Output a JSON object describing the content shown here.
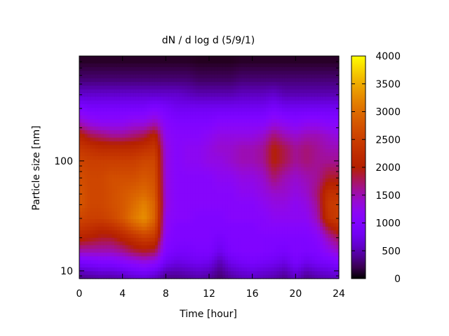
{
  "chart_data": {
    "type": "heatmap",
    "title": "dN / d log d (5/9/1)",
    "xlabel": "Time [hour]",
    "ylabel": "Particle size [nm]",
    "x_ticks": [
      0,
      4,
      8,
      12,
      16,
      20,
      24
    ],
    "x_tick_labels": [
      "0",
      "4",
      "8",
      "12",
      "16",
      "20",
      "24"
    ],
    "xlim": [
      0,
      24
    ],
    "y_scale": "log",
    "ylim": [
      8.5,
      900
    ],
    "y_ticks": [
      10,
      100
    ],
    "y_tick_labels": [
      "10",
      "100"
    ],
    "colorbar": {
      "range": [
        0,
        4000
      ],
      "ticks": [
        0,
        500,
        1000,
        1500,
        2000,
        2500,
        3000,
        3500,
        4000
      ],
      "tick_labels": [
        "0",
        "500",
        "1000",
        "1500",
        "2000",
        "2500",
        "3000",
        "3500",
        "4000"
      ],
      "palette": "gnuplot black-purple-red-orange-yellow"
    },
    "grid_hours": [
      0,
      1,
      2,
      3,
      4,
      5,
      6,
      7,
      8,
      9,
      10,
      11,
      12,
      13,
      14,
      15,
      16,
      17,
      18,
      19,
      20,
      21,
      22,
      23,
      24
    ],
    "grid_diameters_nm": [
      9,
      12,
      15,
      20,
      25,
      30,
      40,
      50,
      70,
      100,
      130,
      170,
      220,
      300,
      400,
      550,
      800
    ],
    "grid_values": [
      [
        400,
        900,
        1500,
        2100,
        2400,
        2600,
        2800,
        2800,
        2700,
        2600,
        2400,
        2100,
        1500,
        1000,
        600,
        300,
        100
      ],
      [
        450,
        950,
        1500,
        2000,
        2300,
        2500,
        2600,
        2600,
        2600,
        2500,
        2300,
        1800,
        1300,
        900,
        600,
        300,
        100
      ],
      [
        500,
        1000,
        1500,
        1900,
        2200,
        2500,
        2600,
        2600,
        2600,
        2500,
        2200,
        1700,
        1200,
        900,
        600,
        300,
        100
      ],
      [
        500,
        1000,
        1500,
        1900,
        2300,
        2600,
        2700,
        2700,
        2700,
        2500,
        2200,
        1600,
        1200,
        900,
        600,
        300,
        100
      ],
      [
        550,
        1100,
        1600,
        2100,
        2500,
        2800,
        2800,
        2800,
        2700,
        2500,
        2200,
        1600,
        1200,
        900,
        600,
        300,
        100
      ],
      [
        650,
        1200,
        1800,
        2300,
        2800,
        3100,
        3000,
        2900,
        2700,
        2500,
        2200,
        1700,
        1300,
        900,
        600,
        300,
        100
      ],
      [
        700,
        1300,
        1900,
        2500,
        3000,
        3300,
        3200,
        3000,
        2800,
        2600,
        2300,
        1800,
        1300,
        900,
        600,
        300,
        100
      ],
      [
        600,
        1200,
        1800,
        2400,
        2700,
        2900,
        2900,
        2800,
        2700,
        2600,
        2400,
        2100,
        1500,
        1000,
        600,
        300,
        100
      ],
      [
        400,
        800,
        1000,
        1100,
        1200,
        1200,
        1300,
        1300,
        1300,
        1300,
        1300,
        1200,
        1100,
        900,
        600,
        300,
        100
      ],
      [
        400,
        700,
        900,
        1000,
        1000,
        1100,
        1100,
        1100,
        1100,
        1100,
        1100,
        1100,
        1000,
        800,
        600,
        300,
        100
      ],
      [
        450,
        750,
        900,
        1000,
        1000,
        1100,
        1100,
        1100,
        1100,
        1200,
        1200,
        1100,
        1000,
        800,
        550,
        300,
        100
      ],
      [
        500,
        800,
        950,
        1000,
        1000,
        1000,
        1100,
        1100,
        1100,
        1200,
        1200,
        1100,
        1000,
        800,
        500,
        250,
        80
      ],
      [
        450,
        750,
        950,
        1000,
        1000,
        1000,
        1100,
        1100,
        1100,
        1300,
        1300,
        1200,
        1000,
        800,
        500,
        250,
        80
      ],
      [
        300,
        500,
        750,
        900,
        1000,
        1000,
        1100,
        1100,
        1200,
        1300,
        1400,
        1300,
        1100,
        800,
        500,
        250,
        80
      ],
      [
        450,
        750,
        950,
        1000,
        1000,
        1100,
        1100,
        1100,
        1200,
        1400,
        1400,
        1300,
        1100,
        800,
        500,
        250,
        80
      ],
      [
        550,
        850,
        1000,
        1000,
        1000,
        1100,
        1100,
        1200,
        1300,
        1500,
        1500,
        1300,
        1100,
        800,
        550,
        300,
        100
      ],
      [
        600,
        900,
        1000,
        1000,
        1000,
        1100,
        1100,
        1200,
        1300,
        1500,
        1500,
        1300,
        1100,
        800,
        550,
        300,
        100
      ],
      [
        550,
        850,
        1000,
        1000,
        1100,
        1100,
        1200,
        1300,
        1400,
        1600,
        1600,
        1400,
        1100,
        800,
        550,
        300,
        100
      ],
      [
        500,
        800,
        950,
        1000,
        1100,
        1200,
        1300,
        1400,
        1700,
        2000,
        2000,
        1700,
        1300,
        900,
        600,
        300,
        100
      ],
      [
        400,
        700,
        900,
        1000,
        1100,
        1200,
        1300,
        1400,
        1500,
        1800,
        1800,
        1500,
        1200,
        800,
        500,
        300,
        100
      ],
      [
        600,
        900,
        1000,
        1000,
        1100,
        1200,
        1200,
        1300,
        1400,
        1600,
        1600,
        1400,
        1100,
        800,
        500,
        300,
        100
      ],
      [
        400,
        750,
        950,
        1000,
        1100,
        1200,
        1300,
        1400,
        1500,
        1700,
        1700,
        1500,
        1200,
        800,
        500,
        300,
        100
      ],
      [
        500,
        850,
        1000,
        1100,
        1300,
        1500,
        1600,
        1700,
        1600,
        1600,
        1600,
        1500,
        1200,
        800,
        500,
        300,
        100
      ],
      [
        550,
        900,
        1200,
        1500,
        1900,
        2300,
        2400,
        2300,
        1900,
        1600,
        1500,
        1400,
        1100,
        800,
        500,
        300,
        100
      ],
      [
        600,
        1000,
        1400,
        1800,
        2200,
        2500,
        2500,
        2300,
        1900,
        1600,
        1500,
        1300,
        1100,
        800,
        500,
        300,
        100
      ]
    ]
  }
}
